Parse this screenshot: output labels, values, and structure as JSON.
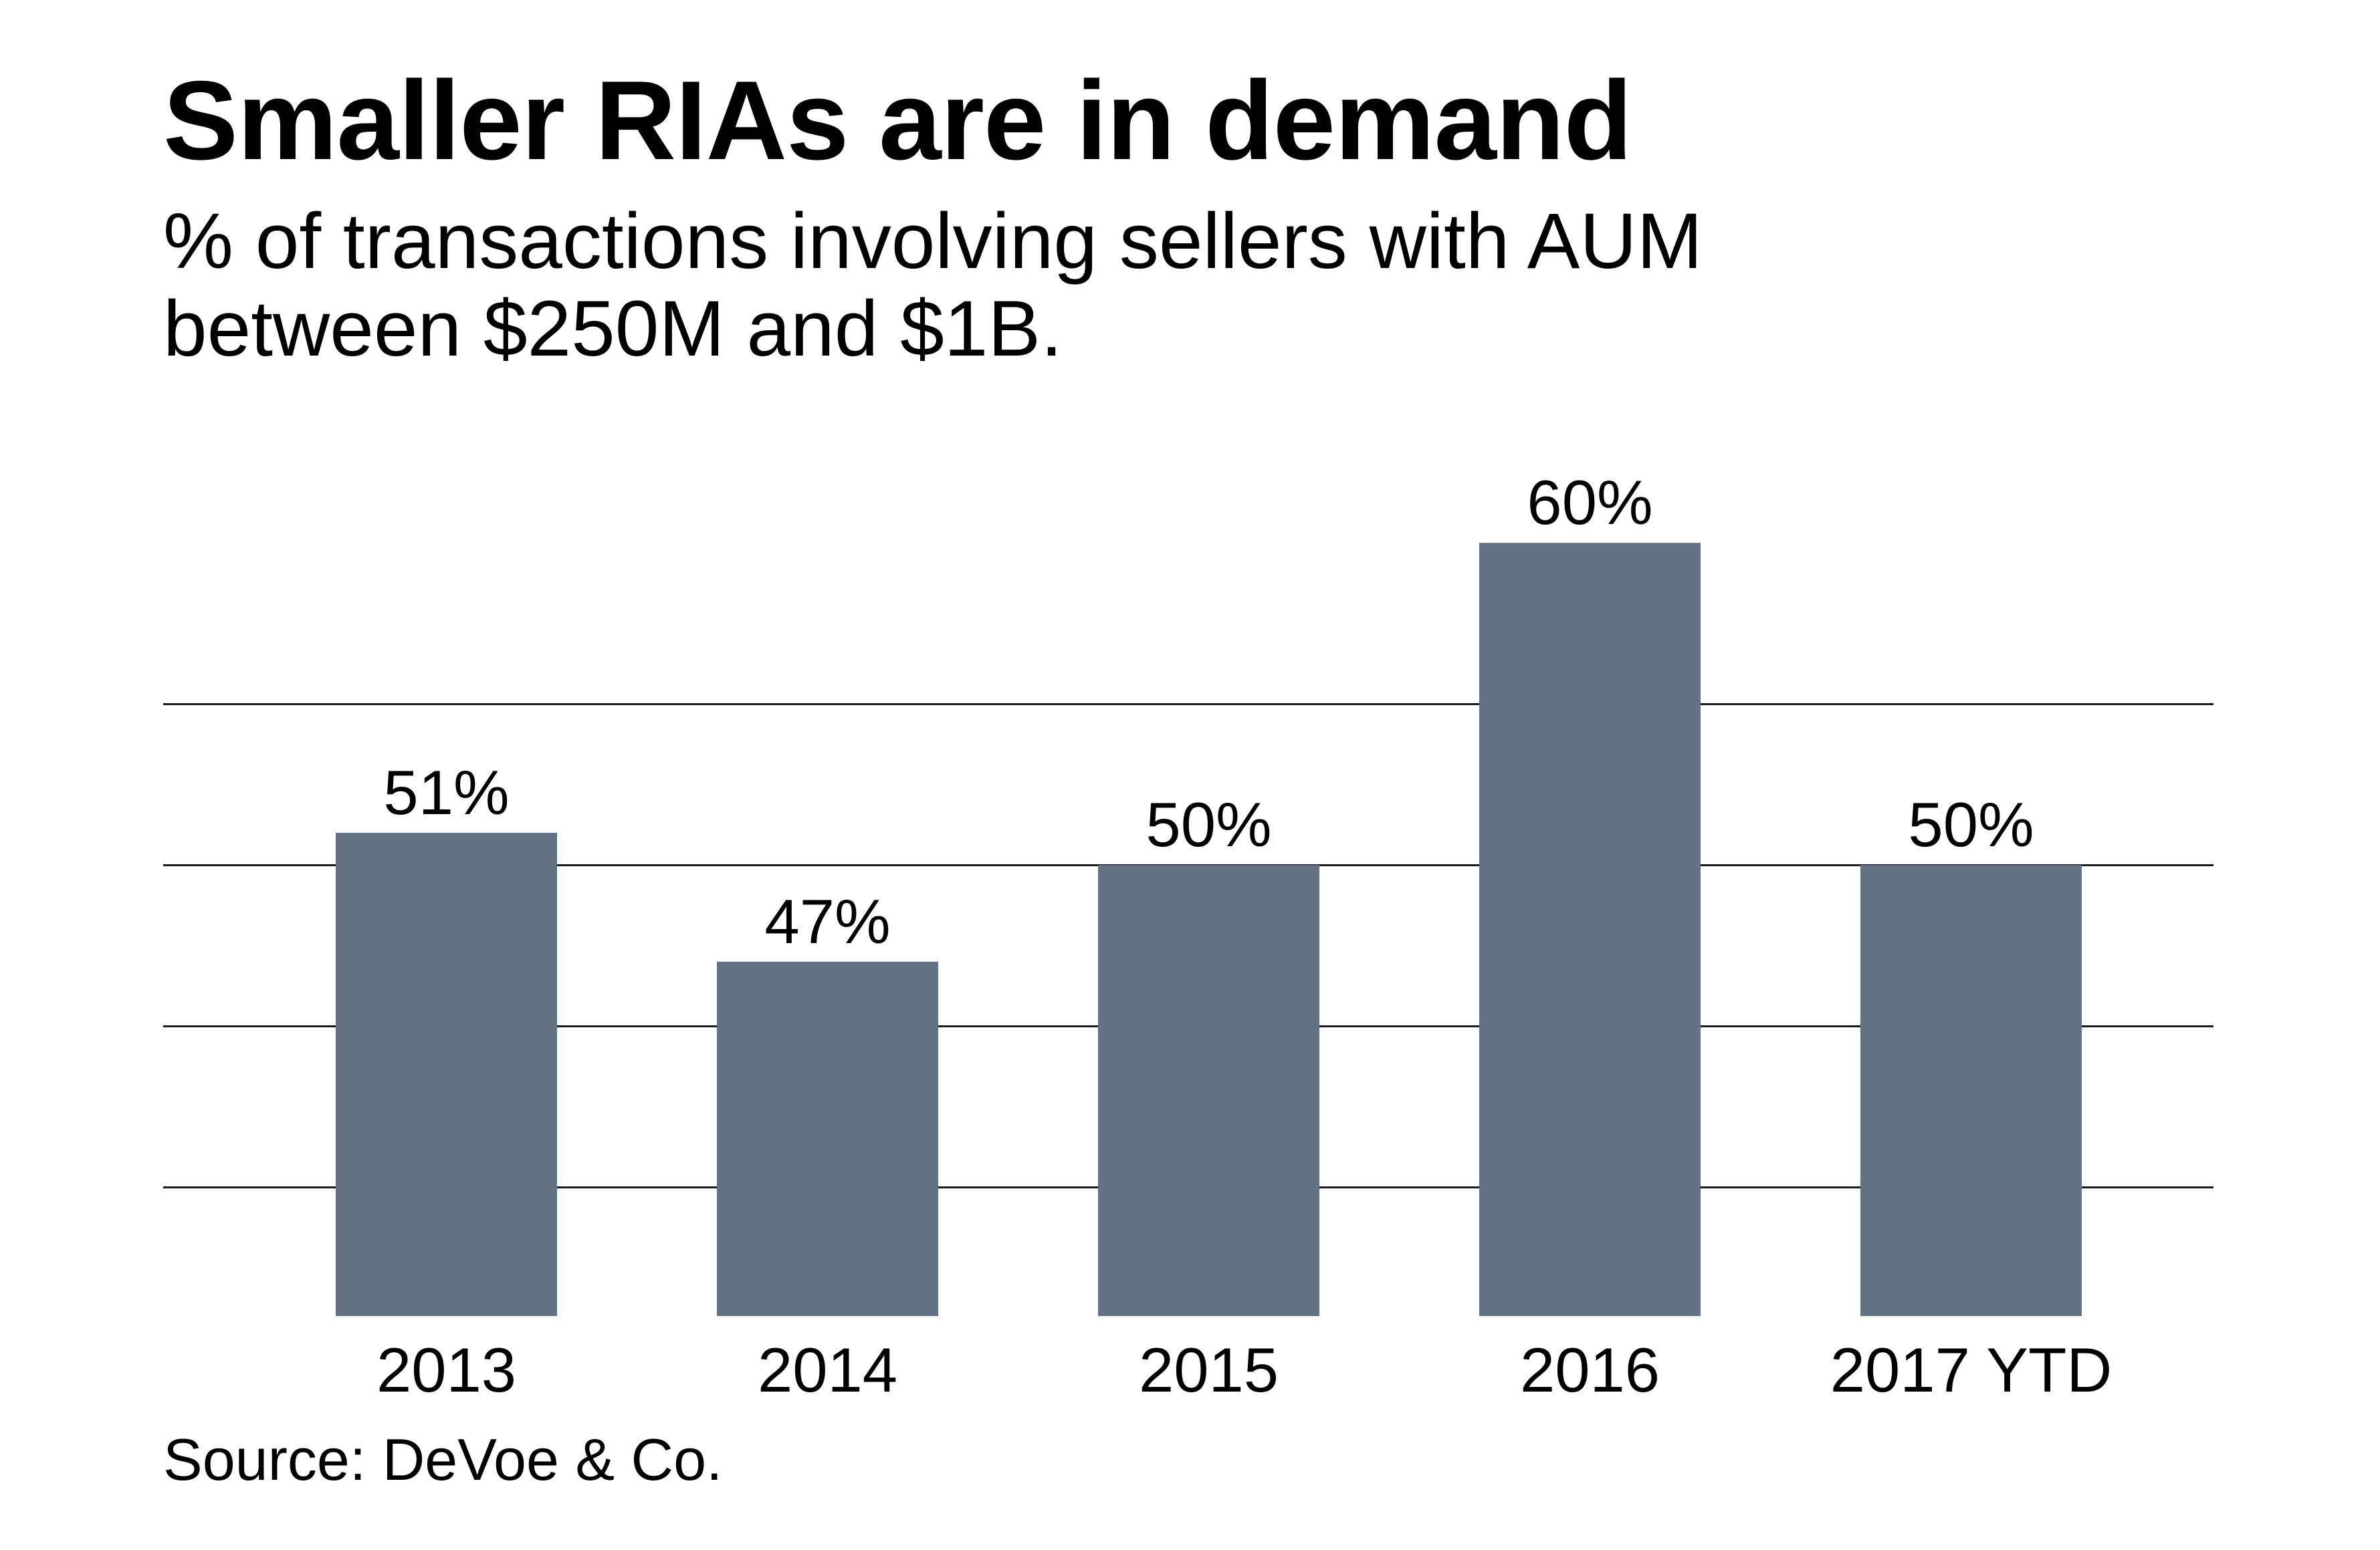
{
  "header": {
    "title": "Smaller RIAs are in demand",
    "subtitle_line1": "% of transactions involving sellers with AUM",
    "subtitle_line2": "between $250M and $1B."
  },
  "footer": {
    "source": "Source: DeVoe & Co."
  },
  "colors": {
    "bar": "#637385",
    "gridline": "#1a1a1a",
    "text": "#000000",
    "background": "#ffffff"
  },
  "chart_data": {
    "type": "bar",
    "title": "Smaller RIAs are in demand",
    "subtitle": "% of transactions involving sellers with AUM between $250M and $1B.",
    "xlabel": "",
    "ylabel": "",
    "categories": [
      "2013",
      "2014",
      "2015",
      "2016",
      "2017 YTD"
    ],
    "values": [
      51,
      47,
      50,
      60,
      50
    ],
    "data_labels": [
      "51%",
      "47%",
      "50%",
      "60%",
      "50%"
    ],
    "unit": "%",
    "ylim": [
      36,
      62
    ],
    "gridlines": [
      40,
      45,
      50,
      55
    ],
    "grid": true,
    "y_tick_labels_shown": false,
    "legend": "none",
    "source": "Source: DeVoe & Co."
  }
}
